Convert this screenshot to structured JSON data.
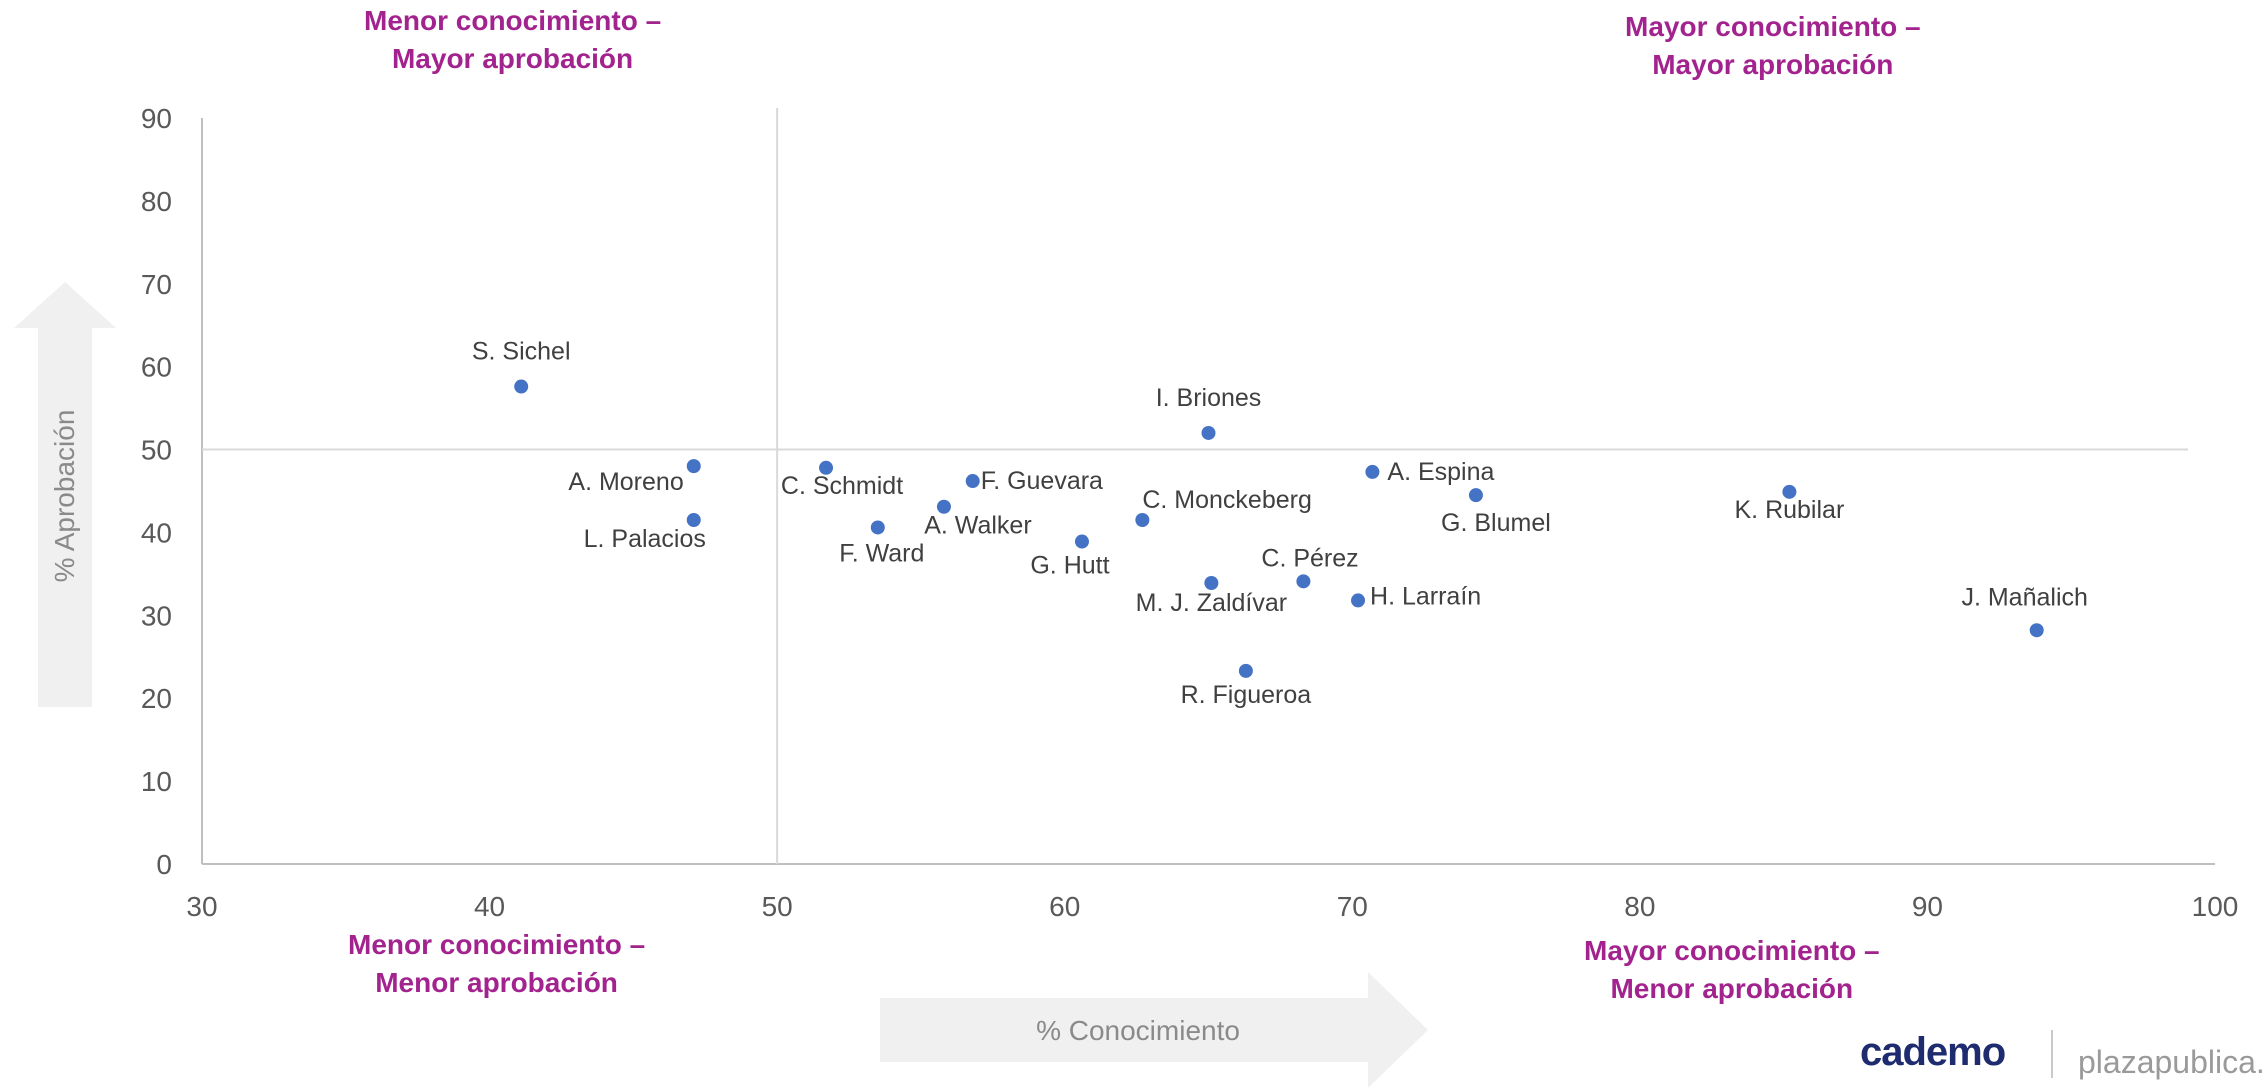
{
  "quadrants": {
    "top_left": [
      "Menor conocimiento –",
      "Mayor aprobación"
    ],
    "top_right": [
      "Mayor conocimiento –",
      "Mayor aprobación"
    ],
    "bottom_left": [
      "Menor conocimiento –",
      "Menor aprobación"
    ],
    "bottom_right": [
      "Mayor conocimiento –",
      "Menor aprobación"
    ]
  },
  "branding": {
    "logo": "cademo",
    "site": "plazapublica.c"
  },
  "chart_data": {
    "type": "scatter",
    "xlabel": "% Conocimiento",
    "ylabel": "% Aprobación",
    "xlim": [
      30,
      100
    ],
    "ylim": [
      0,
      90
    ],
    "xticks": [
      30,
      40,
      50,
      60,
      70,
      80,
      90,
      100
    ],
    "yticks": [
      0,
      10,
      20,
      30,
      40,
      50,
      60,
      70,
      80,
      90
    ],
    "reference_lines": {
      "x": 50,
      "y": 50
    },
    "grid": false,
    "color": "#4472c4",
    "points": [
      {
        "label": "S. Sichel",
        "x": 41.1,
        "y": 57.6
      },
      {
        "label": "A. Moreno",
        "x": 47.1,
        "y": 48.0
      },
      {
        "label": "L. Palacios",
        "x": 47.1,
        "y": 41.5
      },
      {
        "label": "C. Schmidt",
        "x": 51.7,
        "y": 47.8
      },
      {
        "label": "F. Ward",
        "x": 53.5,
        "y": 40.6
      },
      {
        "label": "A. Walker",
        "x": 55.8,
        "y": 43.1
      },
      {
        "label": "F. Guevara",
        "x": 56.8,
        "y": 46.2
      },
      {
        "label": "G. Hutt",
        "x": 60.6,
        "y": 38.9
      },
      {
        "label": "C. Monckeberg",
        "x": 62.7,
        "y": 41.5
      },
      {
        "label": "I. Briones",
        "x": 65.0,
        "y": 52.0
      },
      {
        "label": "M. J. Zaldívar",
        "x": 65.1,
        "y": 33.9
      },
      {
        "label": "R. Figueroa",
        "x": 66.3,
        "y": 23.3
      },
      {
        "label": "C. Pérez",
        "x": 68.3,
        "y": 34.1
      },
      {
        "label": "H. Larraín",
        "x": 70.2,
        "y": 31.8
      },
      {
        "label": "A. Espina",
        "x": 70.7,
        "y": 47.3
      },
      {
        "label": "G. Blumel",
        "x": 74.3,
        "y": 44.5
      },
      {
        "label": "K. Rubilar",
        "x": 85.2,
        "y": 44.9
      },
      {
        "label": "J. Mañalich",
        "x": 93.8,
        "y": 28.2
      }
    ]
  }
}
